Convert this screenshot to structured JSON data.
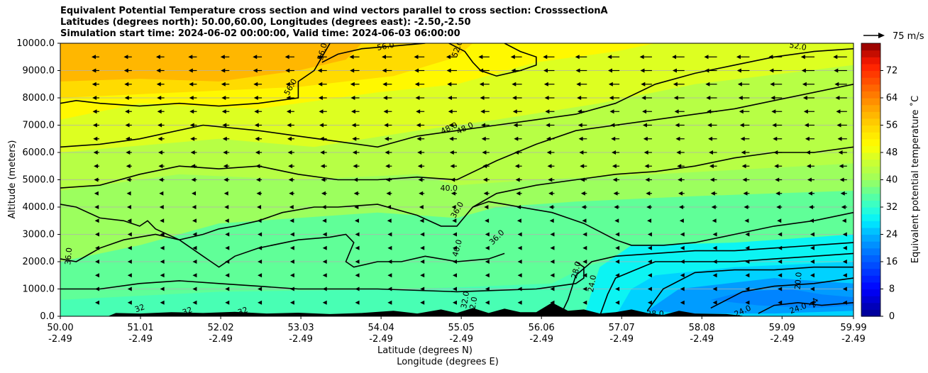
{
  "chart_data": {
    "type": "heatmap",
    "title": [
      "Equivalent Potential Temperature cross section and wind vectors parallel to cross section: CrosssectionA",
      "Latitudes (degrees north): 50.00,60.00, Longitudes (degrees east): -2.50,-2.50",
      "Simulation start time: 2024-06-02 00:00:00, Valid time: 2024-06-03 06:00:00"
    ],
    "xlabel_line1": "Latitude (degrees N)",
    "xlabel_line2": "Longitude (degrees E)",
    "ylabel": "Altitude (meters)",
    "colorbar_label": "Equivalent potential temperature ˚C",
    "quiver_key_label": "75 m/s",
    "xlim": [
      50.0,
      59.99
    ],
    "ylim": [
      0,
      10000
    ],
    "x_ticks": [
      {
        "lat": "50.00",
        "lon": "-2.49"
      },
      {
        "lat": "51.01",
        "lon": "-2.49"
      },
      {
        "lat": "52.02",
        "lon": "-2.49"
      },
      {
        "lat": "53.03",
        "lon": "-2.49"
      },
      {
        "lat": "54.04",
        "lon": "-2.49"
      },
      {
        "lat": "55.05",
        "lon": "-2.49"
      },
      {
        "lat": "56.06",
        "lon": "-2.49"
      },
      {
        "lat": "57.07",
        "lon": "-2.49"
      },
      {
        "lat": "58.08",
        "lon": "-2.49"
      },
      {
        "lat": "59.09",
        "lon": "-2.49"
      },
      {
        "lat": "59.99",
        "lon": "-2.49"
      }
    ],
    "y_ticks": [
      "0.0",
      "1000.0",
      "2000.0",
      "3000.0",
      "4000.0",
      "5000.0",
      "6000.0",
      "7000.0",
      "8000.0",
      "9000.0",
      "10000.0"
    ],
    "colorbar_range": [
      0,
      80
    ],
    "colorbar_ticks": [
      "0",
      "8",
      "16",
      "24",
      "32",
      "40",
      "48",
      "56",
      "64",
      "72"
    ],
    "grid": "horizontal",
    "contours": [
      {
        "level": "24.0",
        "label": "24.0"
      },
      {
        "level": "28.0",
        "label": "28.0"
      },
      {
        "level": "32.0",
        "label": "32.0"
      },
      {
        "level": "36.0",
        "label": "36.0"
      },
      {
        "level": "40.0",
        "label": "40.0"
      },
      {
        "level": "48.0",
        "label": "48.0"
      },
      {
        "level": "56.0",
        "label": "56.0"
      }
    ],
    "contour_labels": [
      "56.0",
      "56.0",
      "56.0",
      "52.0",
      "52.0",
      "48.0",
      "48.0",
      "40.0",
      "40.0",
      "36.0",
      "36.0",
      "36.0",
      "32.0",
      "32.0",
      "28.0",
      "24.0",
      "24.0",
      "24.0",
      "20.0",
      "24",
      "32",
      "32",
      "32",
      "28.0"
    ]
  }
}
